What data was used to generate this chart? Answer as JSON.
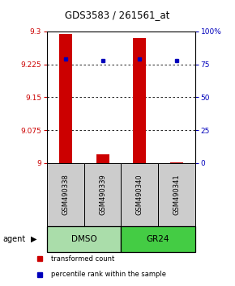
{
  "title": "GDS3583 / 261561_at",
  "samples": [
    "GSM490338",
    "GSM490339",
    "GSM490340",
    "GSM490341"
  ],
  "bar_values": [
    9.295,
    9.02,
    9.285,
    9.002
  ],
  "bar_base": 9.0,
  "percentile_values": [
    79,
    78,
    79,
    78
  ],
  "red_color": "#cc0000",
  "blue_color": "#0000bb",
  "ylim_min": 9.0,
  "ylim_max": 9.3,
  "yticks": [
    9.0,
    9.075,
    9.15,
    9.225,
    9.3
  ],
  "ytick_labels": [
    "9",
    "9.075",
    "9.15",
    "9.225",
    "9.3"
  ],
  "right_yticks": [
    0,
    25,
    50,
    75,
    100
  ],
  "right_ytick_labels": [
    "0",
    "25",
    "50",
    "75",
    "100%"
  ],
  "groups": [
    {
      "label": "DMSO",
      "samples": [
        0,
        1
      ],
      "color": "#aaddaa"
    },
    {
      "label": "GR24",
      "samples": [
        2,
        3
      ],
      "color": "#44cc44"
    }
  ],
  "agent_label": "agent",
  "legend_red": "transformed count",
  "legend_blue": "percentile rank within the sample",
  "bar_width": 0.35,
  "background_color": "#ffffff"
}
